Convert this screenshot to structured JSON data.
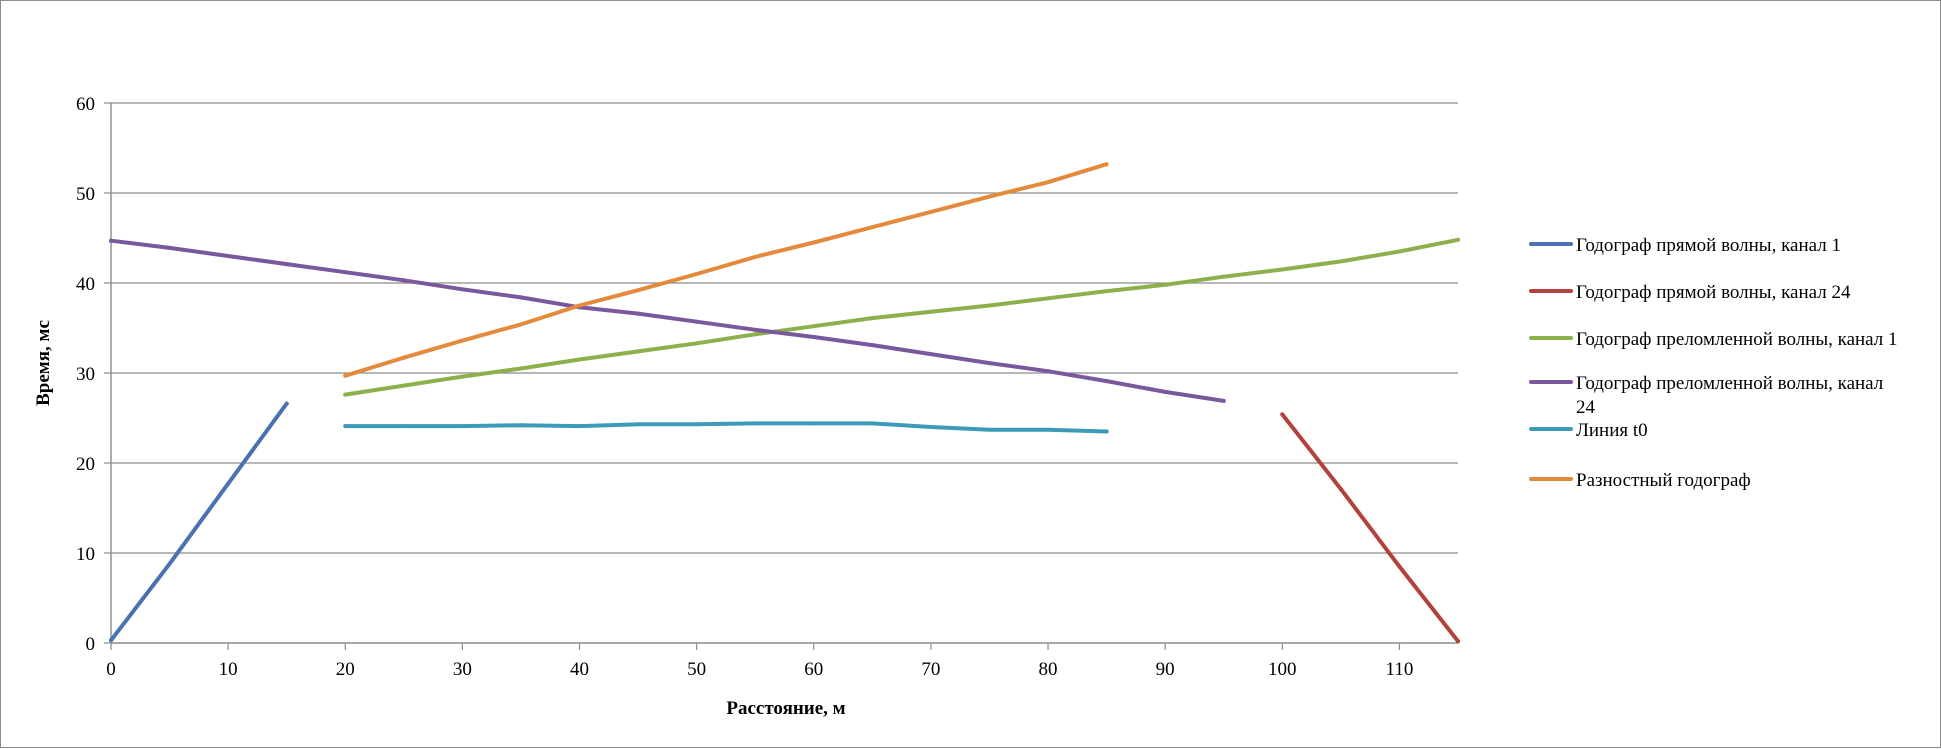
{
  "chart_data": {
    "type": "line",
    "title": "",
    "xlabel": "Расстояние, м",
    "ylabel": "Время, мс",
    "xlim": [
      0,
      115
    ],
    "ylim": [
      0,
      60
    ],
    "x_ticks": [
      0,
      10,
      20,
      30,
      40,
      50,
      60,
      70,
      80,
      90,
      100,
      110
    ],
    "y_ticks": [
      0,
      10,
      20,
      30,
      40,
      50,
      60
    ],
    "grid": "horizontal",
    "legend_position": "right",
    "series": [
      {
        "name": "Годограф прямой волны, канал 1",
        "color": "#4a72b0",
        "points": [
          [
            0,
            0.3
          ],
          [
            5,
            8.8
          ],
          [
            10,
            17.7
          ],
          [
            15,
            26.6
          ]
        ]
      },
      {
        "name": "Годограф прямой волны, канал 24",
        "color": "#b3423c",
        "points": [
          [
            100,
            25.4
          ],
          [
            105,
            17.1
          ],
          [
            110,
            8.5
          ],
          [
            115,
            0.2
          ]
        ]
      },
      {
        "name": "Годограф преломленной волны, канал 1",
        "color": "#8cb04b",
        "points": [
          [
            20,
            27.6
          ],
          [
            25,
            28.6
          ],
          [
            30,
            29.6
          ],
          [
            35,
            30.5
          ],
          [
            40,
            31.5
          ],
          [
            45,
            32.4
          ],
          [
            50,
            33.3
          ],
          [
            55,
            34.3
          ],
          [
            60,
            35.2
          ],
          [
            65,
            36.1
          ],
          [
            70,
            36.8
          ],
          [
            75,
            37.5
          ],
          [
            80,
            38.3
          ],
          [
            85,
            39.1
          ],
          [
            90,
            39.8
          ],
          [
            95,
            40.7
          ],
          [
            100,
            41.5
          ],
          [
            105,
            42.4
          ],
          [
            110,
            43.5
          ],
          [
            115,
            44.8
          ]
        ]
      },
      {
        "name": "Годограф преломленной волны, канал 24",
        "color": "#7a589e",
        "points": [
          [
            0,
            44.7
          ],
          [
            5,
            43.9
          ],
          [
            10,
            43.0
          ],
          [
            15,
            42.1
          ],
          [
            20,
            41.2
          ],
          [
            25,
            40.3
          ],
          [
            30,
            39.3
          ],
          [
            35,
            38.4
          ],
          [
            40,
            37.3
          ],
          [
            45,
            36.6
          ],
          [
            50,
            35.7
          ],
          [
            55,
            34.8
          ],
          [
            60,
            34.0
          ],
          [
            65,
            33.1
          ],
          [
            70,
            32.1
          ],
          [
            75,
            31.1
          ],
          [
            80,
            30.2
          ],
          [
            85,
            29.1
          ],
          [
            90,
            27.9
          ],
          [
            95,
            26.9
          ]
        ]
      },
      {
        "name": "Линия t0",
        "color": "#3d9bba",
        "points": [
          [
            20,
            24.1
          ],
          [
            25,
            24.1
          ],
          [
            30,
            24.1
          ],
          [
            35,
            24.2
          ],
          [
            40,
            24.1
          ],
          [
            45,
            24.3
          ],
          [
            50,
            24.3
          ],
          [
            55,
            24.4
          ],
          [
            60,
            24.4
          ],
          [
            65,
            24.4
          ],
          [
            70,
            24.0
          ],
          [
            75,
            23.7
          ],
          [
            80,
            23.7
          ],
          [
            85,
            23.5
          ]
        ]
      },
      {
        "name": "Разностный годограф",
        "color": "#e38a3c",
        "points": [
          [
            20,
            29.7
          ],
          [
            25,
            31.7
          ],
          [
            30,
            33.6
          ],
          [
            35,
            35.4
          ],
          [
            40,
            37.5
          ],
          [
            45,
            39.2
          ],
          [
            50,
            41.0
          ],
          [
            55,
            42.9
          ],
          [
            60,
            44.5
          ],
          [
            65,
            46.2
          ],
          [
            70,
            47.9
          ],
          [
            75,
            49.6
          ],
          [
            80,
            51.2
          ],
          [
            85,
            53.2
          ]
        ]
      }
    ]
  }
}
